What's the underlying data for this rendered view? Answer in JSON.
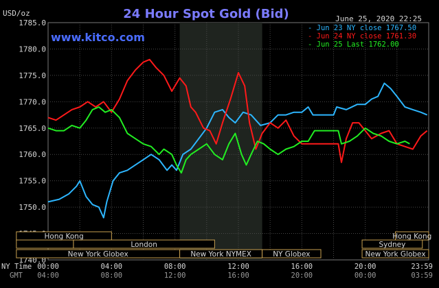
{
  "header": {
    "units": "USD/oz",
    "title": "24 Hour Spot Gold (Bid)",
    "timestamp": "June 25, 2020 22:25",
    "brand": "www.kitco.com"
  },
  "colors": {
    "background": "#000000",
    "plot_background": "#000000",
    "grid": "#4a4a4a",
    "nymex_shade": "#1f241f",
    "title": "#7b7bff",
    "brand": "#4a6cff",
    "series_blue": "#2db6ff",
    "series_red": "#ff1a1a",
    "series_green": "#22ee22",
    "market_bar_fill": "#000000",
    "market_bar_border": "#c8a050",
    "axis_text": "#d8d8d8"
  },
  "legend": [
    {
      "text": "Jun 23 NY close 1767.50",
      "color": "#2db6ff"
    },
    {
      "text": "Jun 24 NY close 1761.30",
      "color": "#ff1a1a"
    },
    {
      "text": "Jun 25 Last 1762.00",
      "color": "#22ee22"
    }
  ],
  "markets": [
    {
      "label": "Hong Kong",
      "start": -2,
      "end": 4
    },
    {
      "label": "",
      "start": -2,
      "end": 1.6
    },
    {
      "label": "London",
      "start": 1.6,
      "end": 10.5
    },
    {
      "label": "New York Globex",
      "start": -2,
      "end": 8.3
    },
    {
      "label": "New York NYMEX",
      "start": 8.3,
      "end": 13.5
    },
    {
      "label": "NY Globex",
      "start": 13.5,
      "end": 17.2
    },
    {
      "label": "Hong Kong",
      "start": 21.9,
      "end": 25
    },
    {
      "label": "Sydney",
      "start": 19.8,
      "end": 23.6
    },
    {
      "label": "New York Globex",
      "start": 19.8,
      "end": 25
    }
  ],
  "time_labels": {
    "ny_label": "NY Time",
    "gmt_label": "GMT",
    "ny": [
      "00:00",
      "04:00",
      "08:00",
      "12:00",
      "16:00",
      "20:00",
      "23:59"
    ],
    "gmt": [
      "04:00",
      "08:00",
      "12:00",
      "16:00",
      "20:00",
      "00:00",
      "03:59"
    ]
  },
  "chart_data": {
    "type": "line",
    "title": "24 Hour Spot Gold (Bid)",
    "ylabel": "USD/oz",
    "xlabel": "NY Time",
    "ylim": [
      1740,
      1785
    ],
    "xlim": [
      0,
      24
    ],
    "yticks": [
      "1785.0",
      "1780.0",
      "1775.0",
      "1770.0",
      "1765.0",
      "1760.0",
      "1755.0",
      "1750.0",
      "1745.0",
      "1740.0"
    ],
    "shaded_region": {
      "name": "New York NYMEX",
      "x": [
        8.3,
        13.5
      ]
    },
    "grid": true,
    "legend_position": "top-right",
    "series": [
      {
        "name": "Jun 23 NY close 1767.50",
        "color": "#2db6ff",
        "points": [
          [
            0,
            1751
          ],
          [
            0.7,
            1751.5
          ],
          [
            1.3,
            1752.5
          ],
          [
            1.8,
            1754
          ],
          [
            2,
            1755
          ],
          [
            2.4,
            1752
          ],
          [
            2.8,
            1750.5
          ],
          [
            3.2,
            1750
          ],
          [
            3.5,
            1748
          ],
          [
            3.7,
            1751
          ],
          [
            4.1,
            1755
          ],
          [
            4.5,
            1756.5
          ],
          [
            5,
            1757
          ],
          [
            5.5,
            1758
          ],
          [
            6,
            1759
          ],
          [
            6.5,
            1760
          ],
          [
            7,
            1759
          ],
          [
            7.5,
            1757
          ],
          [
            7.8,
            1758
          ],
          [
            8.1,
            1757
          ],
          [
            8.5,
            1760
          ],
          [
            9,
            1761
          ],
          [
            9.5,
            1763
          ],
          [
            10,
            1765
          ],
          [
            10.5,
            1768
          ],
          [
            11,
            1768.5
          ],
          [
            11.4,
            1767
          ],
          [
            11.8,
            1766
          ],
          [
            12.3,
            1768
          ],
          [
            12.8,
            1767.5
          ],
          [
            13.4,
            1765.5
          ],
          [
            14,
            1766
          ],
          [
            14.5,
            1767.5
          ],
          [
            15,
            1767.5
          ],
          [
            15.5,
            1768
          ],
          [
            16,
            1768
          ],
          [
            16.4,
            1769
          ],
          [
            16.7,
            1767.5
          ],
          [
            18,
            1767.5
          ],
          [
            18.2,
            1769
          ],
          [
            18.8,
            1768.5
          ],
          [
            19.5,
            1769.5
          ],
          [
            20,
            1769.5
          ],
          [
            20.4,
            1770.5
          ],
          [
            20.8,
            1771
          ],
          [
            21.2,
            1773.5
          ],
          [
            21.6,
            1772.5
          ],
          [
            22,
            1771
          ],
          [
            22.5,
            1769
          ],
          [
            23,
            1768.5
          ],
          [
            23.5,
            1768
          ],
          [
            23.9,
            1767.5
          ]
        ]
      },
      {
        "name": "Jun 24 NY close 1761.30",
        "color": "#ff1a1a",
        "points": [
          [
            0,
            1767
          ],
          [
            0.5,
            1766.5
          ],
          [
            1,
            1767.5
          ],
          [
            1.5,
            1768.5
          ],
          [
            2,
            1769
          ],
          [
            2.5,
            1770
          ],
          [
            3,
            1769
          ],
          [
            3.5,
            1770
          ],
          [
            4,
            1768
          ],
          [
            4.5,
            1770.5
          ],
          [
            5,
            1774
          ],
          [
            5.5,
            1776
          ],
          [
            6,
            1777.5
          ],
          [
            6.4,
            1778
          ],
          [
            6.8,
            1776.5
          ],
          [
            7.3,
            1775
          ],
          [
            7.8,
            1772
          ],
          [
            8.3,
            1774.5
          ],
          [
            8.7,
            1773
          ],
          [
            9,
            1769
          ],
          [
            9.3,
            1768
          ],
          [
            9.8,
            1765
          ],
          [
            10.2,
            1764.5
          ],
          [
            10.6,
            1762
          ],
          [
            11,
            1766
          ],
          [
            11.5,
            1770.5
          ],
          [
            12,
            1775.5
          ],
          [
            12.4,
            1773
          ],
          [
            12.7,
            1766
          ],
          [
            13.1,
            1761
          ],
          [
            13.5,
            1764
          ],
          [
            14,
            1766
          ],
          [
            14.5,
            1765
          ],
          [
            15,
            1766.5
          ],
          [
            15.5,
            1763.5
          ],
          [
            16,
            1762
          ],
          [
            16.5,
            1762
          ],
          [
            16.8,
            1762
          ],
          [
            17.5,
            1762
          ],
          [
            18.3,
            1762
          ],
          [
            18.5,
            1758.5
          ],
          [
            18.8,
            1763
          ],
          [
            19.2,
            1766
          ],
          [
            19.6,
            1766
          ],
          [
            20,
            1764.5
          ],
          [
            20.4,
            1763
          ],
          [
            21,
            1764
          ],
          [
            21.5,
            1764.5
          ],
          [
            22,
            1762
          ],
          [
            22.5,
            1761.5
          ],
          [
            23,
            1761
          ],
          [
            23.5,
            1763.5
          ],
          [
            23.9,
            1764.5
          ]
        ]
      },
      {
        "name": "Jun 25 Last 1762.00",
        "color": "#22ee22",
        "points": [
          [
            0,
            1765
          ],
          [
            0.5,
            1764.5
          ],
          [
            1,
            1764.5
          ],
          [
            1.5,
            1765.5
          ],
          [
            2,
            1765
          ],
          [
            2.4,
            1766.5
          ],
          [
            2.8,
            1768.5
          ],
          [
            3.2,
            1769
          ],
          [
            3.6,
            1768
          ],
          [
            4,
            1768.5
          ],
          [
            4.5,
            1767
          ],
          [
            5,
            1764
          ],
          [
            5.5,
            1763
          ],
          [
            6,
            1762
          ],
          [
            6.5,
            1761.5
          ],
          [
            7,
            1760
          ],
          [
            7.3,
            1761
          ],
          [
            7.8,
            1760
          ],
          [
            8.1,
            1758
          ],
          [
            8.4,
            1756.5
          ],
          [
            8.7,
            1759
          ],
          [
            9,
            1760
          ],
          [
            9.5,
            1761
          ],
          [
            10,
            1762
          ],
          [
            10.5,
            1760
          ],
          [
            11,
            1759
          ],
          [
            11.4,
            1762
          ],
          [
            11.8,
            1764
          ],
          [
            12.2,
            1760
          ],
          [
            12.5,
            1758
          ],
          [
            12.8,
            1760
          ],
          [
            13.2,
            1762.5
          ],
          [
            13.6,
            1762
          ],
          [
            14,
            1761
          ],
          [
            14.5,
            1760
          ],
          [
            15,
            1761
          ],
          [
            15.5,
            1761.5
          ],
          [
            16,
            1762.5
          ],
          [
            16.4,
            1762.5
          ],
          [
            16.8,
            1764.5
          ],
          [
            17.5,
            1764.5
          ],
          [
            18.3,
            1764.5
          ],
          [
            18.5,
            1762
          ],
          [
            19,
            1762.5
          ],
          [
            19.5,
            1763.5
          ],
          [
            20,
            1765
          ],
          [
            20.5,
            1764
          ],
          [
            21,
            1763.5
          ],
          [
            21.5,
            1762.5
          ],
          [
            22,
            1762
          ],
          [
            22.5,
            1762.5
          ],
          [
            22.8,
            1762
          ]
        ]
      }
    ]
  }
}
